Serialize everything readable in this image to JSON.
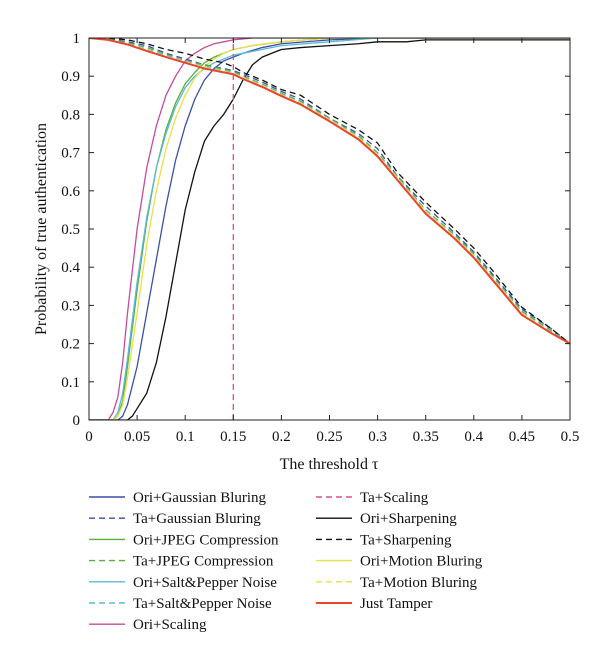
{
  "chart_data": {
    "type": "line",
    "title": "",
    "xlabel": "The threshold τ",
    "ylabel": "Probability of true authentication",
    "xlim": [
      0,
      0.5
    ],
    "ylim": [
      0,
      1
    ],
    "xticks": [
      "0",
      "0.05",
      "0.1",
      "0.15",
      "0.2",
      "0.25",
      "0.3",
      "0.35",
      "0.4",
      "0.45",
      "0.5"
    ],
    "yticks": [
      "0",
      "0.1",
      "0.2",
      "0.3",
      "0.4",
      "0.5",
      "0.6",
      "0.7",
      "0.8",
      "0.9",
      "1"
    ],
    "grid": false,
    "legend_placement": "bottom",
    "series": [
      {
        "name": "Ori+Gaussian Bluring",
        "color": "#3b4fa8",
        "dash": "solid",
        "x": [
          0,
          0.03,
          0.035,
          0.04,
          0.05,
          0.06,
          0.07,
          0.08,
          0.09,
          0.1,
          0.11,
          0.12,
          0.13,
          0.14,
          0.15,
          0.16,
          0.18,
          0.2,
          0.25,
          0.3,
          0.5
        ],
        "y": [
          0,
          0,
          0.01,
          0.04,
          0.14,
          0.28,
          0.42,
          0.56,
          0.68,
          0.77,
          0.84,
          0.89,
          0.92,
          0.94,
          0.95,
          0.96,
          0.975,
          0.985,
          0.995,
          1,
          1
        ]
      },
      {
        "name": "Ta+Gaussian Bluring",
        "color": "#3b4fa8",
        "dash": "dashed",
        "x": [
          0,
          0.02,
          0.04,
          0.06,
          0.08,
          0.1,
          0.12,
          0.14,
          0.15,
          0.16,
          0.18,
          0.2,
          0.22,
          0.25,
          0.28,
          0.3,
          0.32,
          0.35,
          0.38,
          0.4,
          0.42,
          0.45,
          0.48,
          0.5
        ],
        "y": [
          1,
          0.998,
          0.99,
          0.98,
          0.96,
          0.945,
          0.93,
          0.92,
          0.915,
          0.905,
          0.885,
          0.86,
          0.84,
          0.79,
          0.75,
          0.71,
          0.64,
          0.56,
          0.49,
          0.44,
          0.38,
          0.29,
          0.24,
          0.2
        ]
      },
      {
        "name": "Ori+JPEG Compression",
        "color": "#5cae3c",
        "dash": "solid",
        "x": [
          0,
          0.025,
          0.03,
          0.035,
          0.04,
          0.05,
          0.06,
          0.07,
          0.08,
          0.09,
          0.1,
          0.11,
          0.12,
          0.13,
          0.14,
          0.15,
          0.17,
          0.2,
          0.25,
          0.5
        ],
        "y": [
          0,
          0,
          0.01,
          0.05,
          0.14,
          0.34,
          0.52,
          0.66,
          0.76,
          0.83,
          0.88,
          0.91,
          0.935,
          0.95,
          0.96,
          0.97,
          0.98,
          0.99,
          1,
          1
        ]
      },
      {
        "name": "Ta+JPEG Compression",
        "color": "#5cae3c",
        "dash": "dashed",
        "x": [
          0,
          0.02,
          0.04,
          0.06,
          0.08,
          0.1,
          0.12,
          0.14,
          0.15,
          0.16,
          0.18,
          0.2,
          0.22,
          0.25,
          0.28,
          0.3,
          0.32,
          0.35,
          0.38,
          0.4,
          0.42,
          0.45,
          0.48,
          0.5
        ],
        "y": [
          1,
          0.997,
          0.988,
          0.975,
          0.958,
          0.94,
          0.93,
          0.918,
          0.913,
          0.9,
          0.88,
          0.855,
          0.835,
          0.79,
          0.745,
          0.7,
          0.64,
          0.55,
          0.485,
          0.435,
          0.375,
          0.285,
          0.235,
          0.2
        ]
      },
      {
        "name": "Ori+Salt&Pepper Noise",
        "color": "#5bbad8",
        "dash": "solid",
        "x": [
          0,
          0.025,
          0.03,
          0.035,
          0.04,
          0.05,
          0.06,
          0.07,
          0.08,
          0.09,
          0.1,
          0.11,
          0.12,
          0.13,
          0.14,
          0.15,
          0.17,
          0.2,
          0.25,
          0.3,
          0.5
        ],
        "y": [
          0,
          0,
          0.02,
          0.07,
          0.16,
          0.36,
          0.53,
          0.66,
          0.75,
          0.82,
          0.87,
          0.9,
          0.92,
          0.935,
          0.945,
          0.955,
          0.965,
          0.98,
          0.99,
          1,
          1
        ]
      },
      {
        "name": "Ta+Salt&Pepper Noise",
        "color": "#5bbad8",
        "dash": "dashed",
        "x": [
          0,
          0.02,
          0.04,
          0.06,
          0.08,
          0.1,
          0.12,
          0.14,
          0.15,
          0.16,
          0.18,
          0.2,
          0.22,
          0.25,
          0.28,
          0.3,
          0.32,
          0.35,
          0.38,
          0.4,
          0.42,
          0.45,
          0.48,
          0.5
        ],
        "y": [
          1,
          0.996,
          0.985,
          0.97,
          0.955,
          0.94,
          0.925,
          0.915,
          0.91,
          0.898,
          0.878,
          0.853,
          0.832,
          0.788,
          0.742,
          0.697,
          0.637,
          0.548,
          0.482,
          0.432,
          0.372,
          0.282,
          0.232,
          0.2
        ]
      },
      {
        "name": "Ori+Scaling",
        "color": "#c64ba0",
        "dash": "solid",
        "x": [
          0,
          0.02,
          0.025,
          0.03,
          0.035,
          0.04,
          0.05,
          0.06,
          0.07,
          0.08,
          0.09,
          0.1,
          0.11,
          0.12,
          0.13,
          0.14,
          0.15,
          0.17,
          0.2,
          0.5
        ],
        "y": [
          0,
          0,
          0.02,
          0.06,
          0.15,
          0.28,
          0.5,
          0.66,
          0.77,
          0.85,
          0.9,
          0.94,
          0.96,
          0.975,
          0.985,
          0.99,
          0.995,
          1,
          1,
          1
        ]
      },
      {
        "name": "Ta+Scaling",
        "color": "#d9508f",
        "dash": "dashed",
        "x": [
          0.15,
          0.15
        ],
        "y": [
          0,
          1
        ]
      },
      {
        "name": "Ori+Sharpening",
        "color": "#111111",
        "dash": "solid",
        "x": [
          0,
          0.04,
          0.045,
          0.05,
          0.06,
          0.07,
          0.08,
          0.09,
          0.1,
          0.11,
          0.12,
          0.13,
          0.14,
          0.15,
          0.16,
          0.17,
          0.18,
          0.19,
          0.2,
          0.22,
          0.25,
          0.28,
          0.3,
          0.33,
          0.35,
          0.5
        ],
        "y": [
          0,
          0,
          0.01,
          0.03,
          0.07,
          0.15,
          0.27,
          0.41,
          0.55,
          0.65,
          0.73,
          0.77,
          0.8,
          0.84,
          0.89,
          0.93,
          0.95,
          0.96,
          0.97,
          0.975,
          0.98,
          0.985,
          0.99,
          0.99,
          0.995,
          0.995
        ]
      },
      {
        "name": "Ta+Sharpening",
        "color": "#111111",
        "dash": "dashed",
        "x": [
          0,
          0.02,
          0.04,
          0.06,
          0.08,
          0.1,
          0.12,
          0.14,
          0.15,
          0.16,
          0.18,
          0.2,
          0.22,
          0.25,
          0.28,
          0.3,
          0.32,
          0.35,
          0.38,
          0.4,
          0.42,
          0.45,
          0.48,
          0.5
        ],
        "y": [
          1,
          1,
          0.995,
          0.985,
          0.97,
          0.96,
          0.945,
          0.935,
          0.925,
          0.91,
          0.89,
          0.865,
          0.85,
          0.8,
          0.76,
          0.725,
          0.65,
          0.57,
          0.5,
          0.45,
          0.39,
          0.295,
          0.24,
          0.2
        ]
      },
      {
        "name": "Ori+Motion Bluring",
        "color": "#e8e04a",
        "dash": "solid",
        "x": [
          0,
          0.025,
          0.03,
          0.035,
          0.04,
          0.05,
          0.06,
          0.07,
          0.08,
          0.09,
          0.1,
          0.11,
          0.12,
          0.13,
          0.14,
          0.15,
          0.17,
          0.2,
          0.25,
          0.5
        ],
        "y": [
          0,
          0,
          0.01,
          0.04,
          0.11,
          0.28,
          0.46,
          0.6,
          0.71,
          0.79,
          0.85,
          0.895,
          0.925,
          0.945,
          0.96,
          0.97,
          0.98,
          0.99,
          1,
          1
        ]
      },
      {
        "name": "Ta+Motion Bluring",
        "color": "#e8e04a",
        "dash": "dashed",
        "x": [
          0,
          0.02,
          0.04,
          0.06,
          0.08,
          0.1,
          0.12,
          0.14,
          0.15,
          0.16,
          0.18,
          0.2,
          0.22,
          0.25,
          0.28,
          0.3,
          0.32,
          0.35,
          0.38,
          0.4,
          0.42,
          0.45,
          0.48,
          0.5
        ],
        "y": [
          1,
          0.995,
          0.984,
          0.968,
          0.952,
          0.938,
          0.923,
          0.913,
          0.908,
          0.896,
          0.876,
          0.851,
          0.83,
          0.786,
          0.74,
          0.695,
          0.635,
          0.546,
          0.48,
          0.43,
          0.37,
          0.28,
          0.23,
          0.2
        ]
      },
      {
        "name": "Just Tamper",
        "color": "#e8452a",
        "dash": "solid",
        "x": [
          0,
          0.02,
          0.04,
          0.06,
          0.08,
          0.1,
          0.12,
          0.14,
          0.15,
          0.16,
          0.18,
          0.2,
          0.22,
          0.25,
          0.28,
          0.3,
          0.32,
          0.35,
          0.38,
          0.4,
          0.42,
          0.45,
          0.48,
          0.5
        ],
        "y": [
          1,
          0.995,
          0.983,
          0.966,
          0.95,
          0.935,
          0.92,
          0.91,
          0.905,
          0.893,
          0.872,
          0.848,
          0.826,
          0.782,
          0.735,
          0.69,
          0.63,
          0.54,
          0.475,
          0.425,
          0.365,
          0.275,
          0.228,
          0.2
        ]
      }
    ]
  }
}
